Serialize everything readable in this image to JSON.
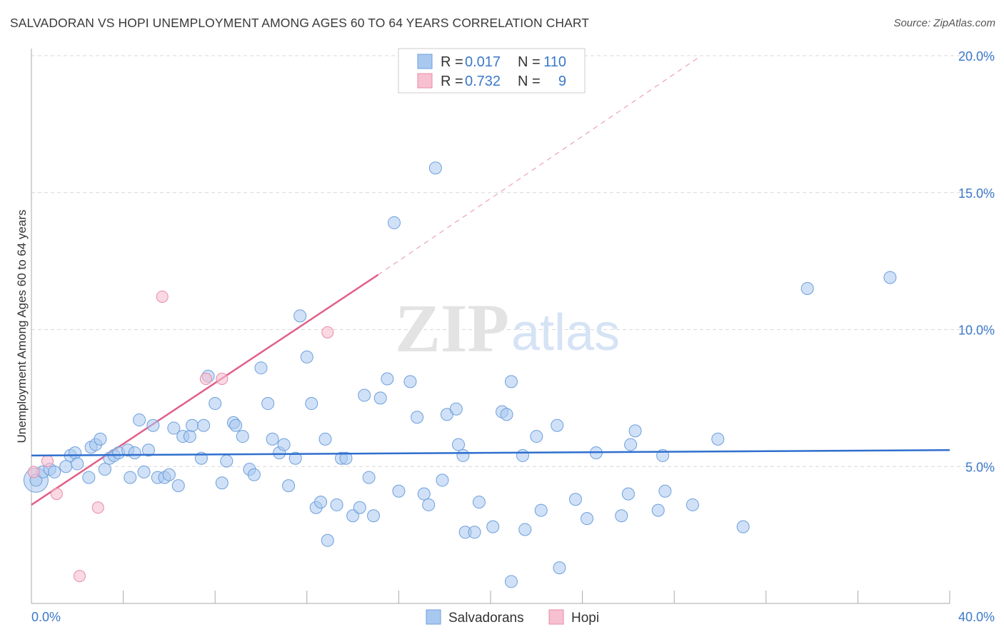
{
  "title": "SALVADORAN VS HOPI UNEMPLOYMENT AMONG AGES 60 TO 64 YEARS CORRELATION CHART",
  "source": "Source: ZipAtlas.com",
  "watermark": {
    "zip": "ZIP",
    "atlas": "atlas"
  },
  "legend_top": {
    "rows": [
      {
        "r_label": "R =",
        "r_value": "0.017",
        "n_label": "N =",
        "n_value": "110"
      },
      {
        "r_label": "R =",
        "r_value": "0.732",
        "n_label": "N =",
        "n_value": "9"
      }
    ]
  },
  "legend_bottom": {
    "items": [
      "Salvadorans",
      "Hopi"
    ]
  },
  "colors": {
    "salvadoran_fill": "#a9c8f0",
    "salvadoran_stroke": "#6d9fdc",
    "salvadoran_line": "#2f6fce",
    "hopi_fill": "#f7c0d0",
    "hopi_stroke": "#e88aa8",
    "hopi_line": "#e0608a",
    "tick_text": "#3b78c9",
    "grid": "#d9d9d9"
  },
  "chart_data": {
    "type": "scatter",
    "title": "SALVADORAN VS HOPI UNEMPLOYMENT AMONG AGES 60 TO 64 YEARS CORRELATION CHART",
    "xlabel": "",
    "ylabel": "Unemployment Among Ages 60 to 64 years",
    "xlim": [
      0,
      40
    ],
    "ylim": [
      0,
      20
    ],
    "x_tick_labels": [
      "0.0%",
      "40.0%"
    ],
    "y_ticks": [
      5,
      10,
      15,
      20
    ],
    "y_tick_labels": [
      "5.0%",
      "10.0%",
      "15.0%",
      "20.0%"
    ],
    "grid": true,
    "legend_position": "top-center",
    "series": [
      {
        "name": "Salvadorans",
        "r": 0.017,
        "n": 110,
        "trend": {
          "x0": 0,
          "y0": 5.4,
          "x1": 40,
          "y1": 5.6
        },
        "points": [
          [
            0.2,
            4.5
          ],
          [
            0.5,
            4.8
          ],
          [
            0.8,
            4.9
          ],
          [
            1.0,
            4.8
          ],
          [
            1.5,
            5.0
          ],
          [
            1.7,
            5.4
          ],
          [
            1.9,
            5.5
          ],
          [
            2.0,
            5.1
          ],
          [
            2.5,
            4.6
          ],
          [
            2.6,
            5.7
          ],
          [
            2.8,
            5.8
          ],
          [
            3.0,
            6.0
          ],
          [
            3.2,
            4.9
          ],
          [
            3.4,
            5.3
          ],
          [
            3.6,
            5.4
          ],
          [
            3.8,
            5.5
          ],
          [
            4.2,
            5.6
          ],
          [
            4.3,
            4.6
          ],
          [
            4.5,
            5.5
          ],
          [
            4.7,
            6.7
          ],
          [
            4.9,
            4.8
          ],
          [
            5.1,
            5.6
          ],
          [
            5.3,
            6.5
          ],
          [
            5.5,
            4.6
          ],
          [
            5.8,
            4.6
          ],
          [
            6.0,
            4.7
          ],
          [
            6.2,
            6.4
          ],
          [
            6.4,
            4.3
          ],
          [
            6.6,
            6.1
          ],
          [
            6.9,
            6.1
          ],
          [
            7.0,
            6.5
          ],
          [
            7.4,
            5.3
          ],
          [
            7.5,
            6.5
          ],
          [
            7.7,
            8.3
          ],
          [
            8.0,
            7.3
          ],
          [
            8.3,
            4.4
          ],
          [
            8.5,
            5.2
          ],
          [
            8.8,
            6.6
          ],
          [
            8.9,
            6.5
          ],
          [
            9.2,
            6.1
          ],
          [
            9.5,
            4.9
          ],
          [
            9.7,
            4.7
          ],
          [
            10.0,
            8.6
          ],
          [
            10.3,
            7.3
          ],
          [
            10.5,
            6.0
          ],
          [
            10.8,
            5.5
          ],
          [
            11.0,
            5.8
          ],
          [
            11.2,
            4.3
          ],
          [
            11.5,
            5.3
          ],
          [
            11.7,
            10.5
          ],
          [
            12.0,
            9.0
          ],
          [
            12.2,
            7.3
          ],
          [
            12.4,
            3.5
          ],
          [
            12.6,
            3.7
          ],
          [
            12.8,
            6.0
          ],
          [
            12.9,
            2.3
          ],
          [
            13.3,
            3.6
          ],
          [
            13.5,
            5.3
          ],
          [
            13.7,
            5.3
          ],
          [
            14.0,
            3.2
          ],
          [
            14.3,
            3.5
          ],
          [
            14.5,
            7.6
          ],
          [
            14.7,
            4.6
          ],
          [
            14.9,
            3.2
          ],
          [
            15.2,
            7.5
          ],
          [
            15.5,
            8.2
          ],
          [
            15.8,
            13.9
          ],
          [
            16.0,
            4.1
          ],
          [
            16.5,
            8.1
          ],
          [
            16.8,
            6.8
          ],
          [
            17.1,
            4.0
          ],
          [
            17.3,
            3.6
          ],
          [
            17.6,
            15.9
          ],
          [
            17.9,
            4.5
          ],
          [
            18.1,
            6.9
          ],
          [
            18.5,
            7.1
          ],
          [
            18.6,
            5.8
          ],
          [
            18.8,
            5.4
          ],
          [
            18.9,
            2.6
          ],
          [
            19.3,
            2.6
          ],
          [
            19.5,
            3.7
          ],
          [
            20.1,
            2.8
          ],
          [
            20.5,
            7.0
          ],
          [
            20.7,
            6.9
          ],
          [
            20.9,
            8.1
          ],
          [
            20.9,
            0.8
          ],
          [
            21.4,
            5.4
          ],
          [
            21.5,
            2.7
          ],
          [
            22.0,
            6.1
          ],
          [
            22.2,
            3.4
          ],
          [
            23.0,
            1.3
          ],
          [
            22.9,
            6.5
          ],
          [
            23.7,
            3.8
          ],
          [
            24.2,
            3.1
          ],
          [
            24.6,
            5.5
          ],
          [
            25.7,
            3.2
          ],
          [
            26.0,
            4.0
          ],
          [
            26.1,
            5.8
          ],
          [
            26.3,
            6.3
          ],
          [
            27.3,
            3.4
          ],
          [
            27.5,
            5.4
          ],
          [
            27.6,
            4.1
          ],
          [
            28.8,
            3.6
          ],
          [
            29.9,
            6.0
          ],
          [
            31.0,
            2.8
          ],
          [
            33.8,
            11.5
          ],
          [
            37.4,
            11.9
          ]
        ]
      },
      {
        "name": "Hopi",
        "r": 0.732,
        "n": 9,
        "trend": {
          "x0": 0,
          "y0": 3.6,
          "x1": 15.1,
          "y1": 12.0
        },
        "trend_extension": {
          "x0": 15.1,
          "y0": 12.0,
          "x1": 29.0,
          "y1": 19.9
        },
        "points": [
          [
            0.1,
            4.8
          ],
          [
            0.7,
            5.2
          ],
          [
            1.1,
            4.0
          ],
          [
            2.1,
            1.0
          ],
          [
            2.9,
            3.5
          ],
          [
            5.7,
            11.2
          ],
          [
            7.6,
            8.2
          ],
          [
            8.3,
            8.2
          ],
          [
            12.9,
            9.9
          ]
        ]
      }
    ]
  }
}
